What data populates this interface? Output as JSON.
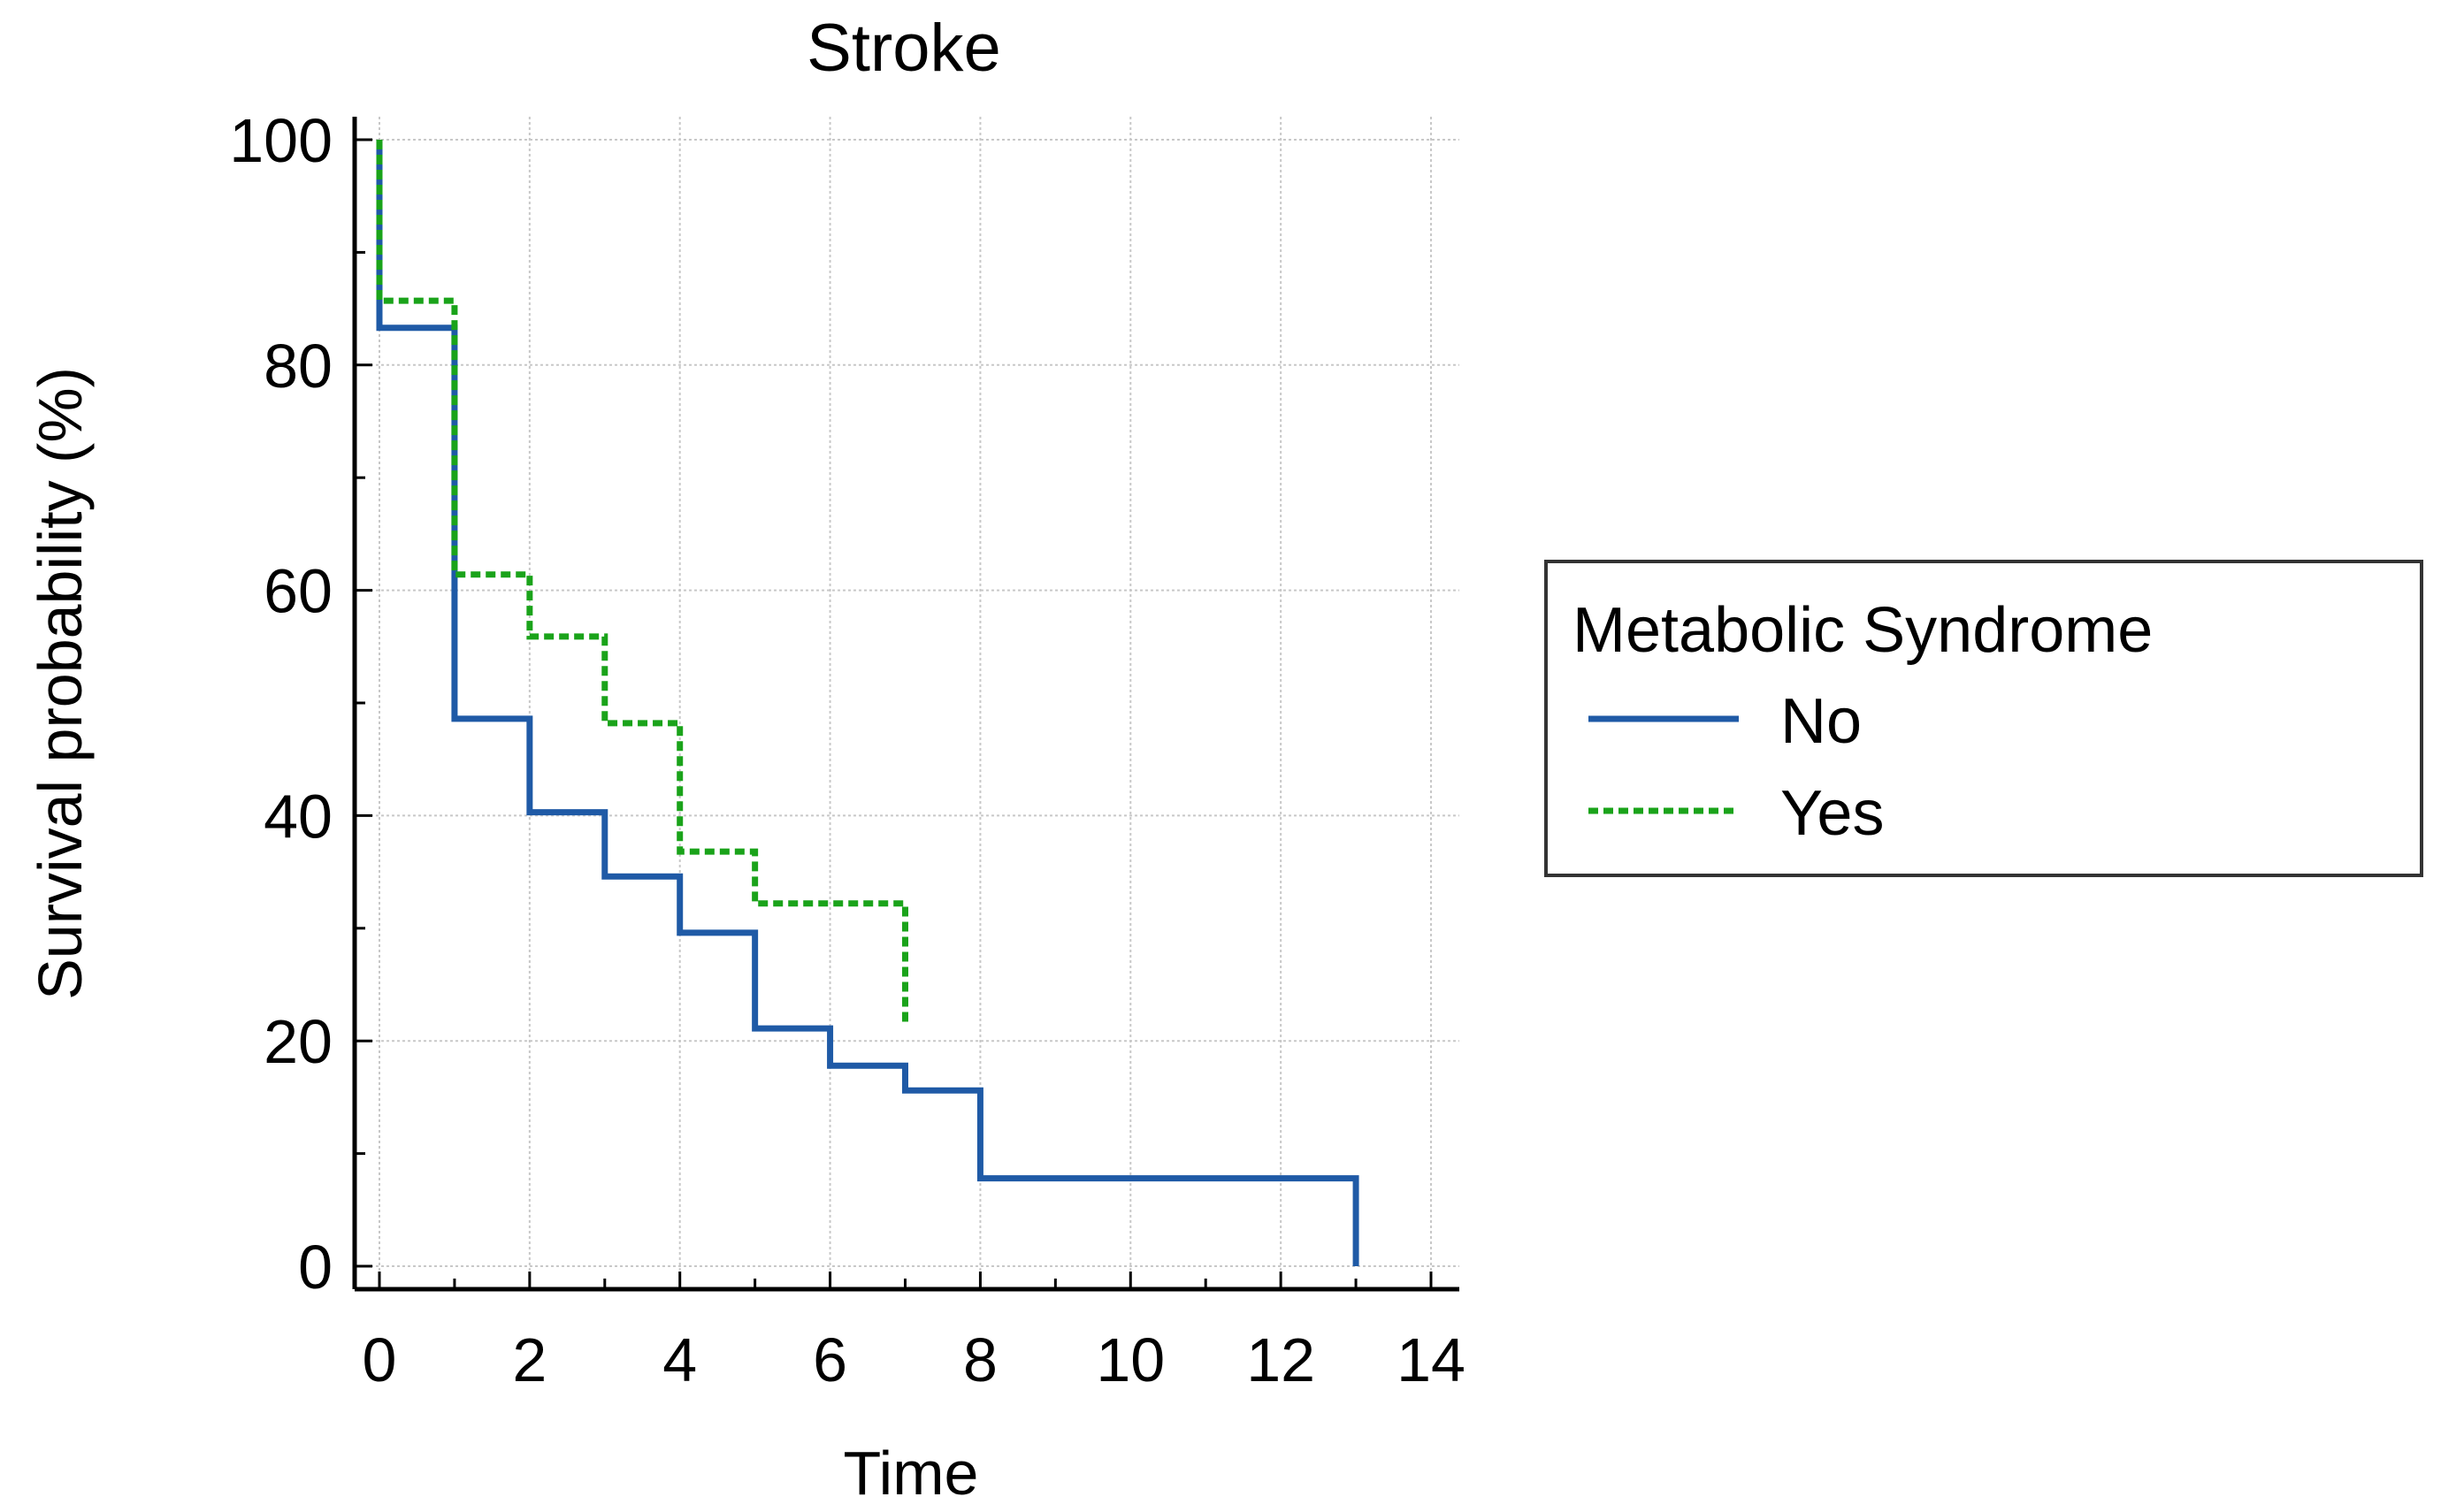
{
  "chart_data": {
    "type": "line",
    "subtype": "step",
    "title": "Stroke",
    "xlabel": "Time",
    "ylabel": "Survival probability (%)",
    "xlim": [
      0,
      14
    ],
    "ylim": [
      0,
      100
    ],
    "xticks": [
      0,
      2,
      4,
      6,
      8,
      10,
      12,
      14
    ],
    "yticks": [
      0,
      20,
      40,
      60,
      80,
      100
    ],
    "grid": true,
    "legend": {
      "title": "Metabolic Syndrome",
      "position": "right"
    },
    "series": [
      {
        "name": "No",
        "color": "#1f5aa6",
        "style": "solid",
        "x": [
          0,
          1,
          2,
          3,
          4,
          5,
          6,
          7,
          8,
          13
        ],
        "y": [
          83.3,
          48.6,
          40.3,
          34.6,
          29.6,
          21.1,
          17.8,
          15.6,
          7.8,
          0
        ]
      },
      {
        "name": "Yes",
        "color": "#1aa31a",
        "style": "dashed",
        "x": [
          0,
          1,
          2,
          3,
          4,
          5,
          7
        ],
        "y": [
          85.7,
          61.4,
          55.9,
          48.2,
          36.8,
          32.2,
          21.5
        ]
      }
    ]
  }
}
